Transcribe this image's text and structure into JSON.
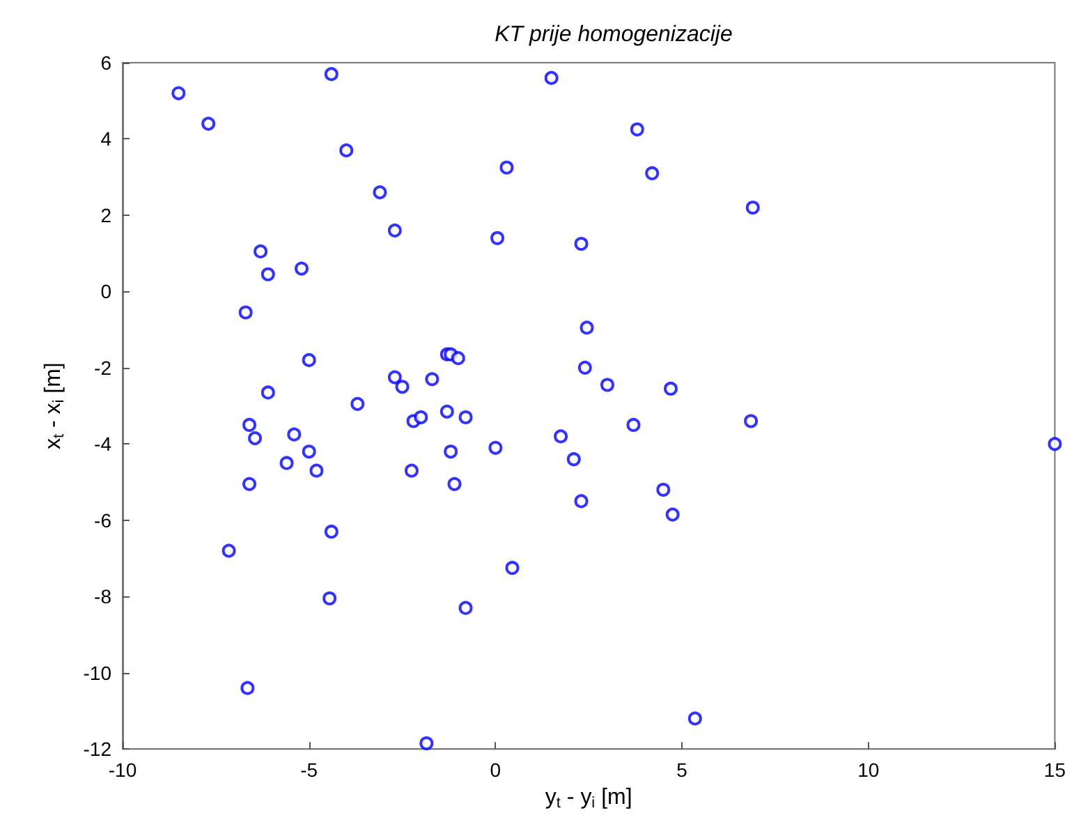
{
  "chart_data": {
    "type": "scatter",
    "title": "KT prije homogenizacije",
    "xlabel": "y$_{t}$ - y$_{i}$ [m]",
    "ylabel": "x$_{t}$ - x$_{i}$ [m]",
    "xlim": [
      -10,
      15
    ],
    "xticks": [
      -10,
      -5,
      0,
      5,
      10,
      15
    ],
    "ylim": [
      -12,
      6
    ],
    "yticks": [
      -12,
      -10,
      -8,
      -6,
      -4,
      -2,
      0,
      2,
      4,
      6
    ],
    "grid": false,
    "marker": "circle",
    "x": [
      -8.5,
      -7.7,
      -4.4,
      -4.0,
      -3.1,
      -2.7,
      1.5,
      0.3,
      3.8,
      4.2,
      6.9,
      0.05,
      2.3,
      -6.3,
      -6.1,
      -5.2,
      -6.7,
      2.45,
      -5.0,
      -6.1,
      -1.3,
      -1.2,
      -1.0,
      -2.7,
      -2.5,
      -1.7,
      -3.7,
      2.4,
      3.0,
      4.7,
      -6.6,
      -6.45,
      -5.4,
      -5.0,
      -5.6,
      -4.8,
      -2.2,
      -2.0,
      -1.3,
      -0.8,
      -1.2,
      0.0,
      1.75,
      2.1,
      3.7,
      6.85,
      15.0,
      -2.25,
      -1.1,
      -6.6,
      2.3,
      4.5,
      4.75,
      -4.4,
      -7.15,
      0.45,
      -4.45,
      -0.8,
      -6.65,
      5.35,
      -1.85
    ],
    "series": [
      {
        "color": "#0000ff",
        "values": [
          5.2,
          4.4,
          5.7,
          3.7,
          2.6,
          1.6,
          5.6,
          3.25,
          4.25,
          3.1,
          2.2,
          1.4,
          1.25,
          1.05,
          0.45,
          0.6,
          -0.55,
          -0.95,
          -1.8,
          -2.65,
          -1.65,
          -1.65,
          -1.75,
          -2.25,
          -2.5,
          -2.3,
          -2.95,
          -2.0,
          -2.45,
          -2.55,
          -3.5,
          -3.85,
          -3.75,
          -4.2,
          -4.5,
          -4.7,
          -3.4,
          -3.3,
          -3.15,
          -3.3,
          -4.2,
          -4.1,
          -3.8,
          -4.4,
          -3.5,
          -3.4,
          -4.0,
          -4.7,
          -5.05,
          -5.05,
          -5.5,
          -5.2,
          -5.85,
          -6.3,
          -6.8,
          -7.25,
          -8.05,
          -8.3,
          -10.4,
          -11.2,
          -11.85
        ]
      }
    ]
  }
}
